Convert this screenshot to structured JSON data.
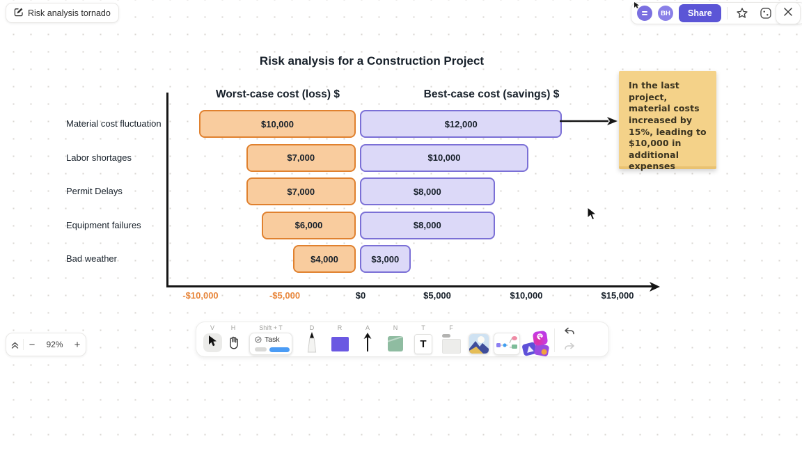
{
  "header": {
    "doc_title": "Risk analysis tornado",
    "avatar_initials": "BH",
    "share_label": "Share"
  },
  "chart_data": {
    "type": "bar",
    "variant": "tornado",
    "title": "Risk analysis for a Construction Project",
    "categories": [
      "Material cost fluctuation",
      "Labor shortages",
      "Permit Delays",
      "Equipment failures",
      "Bad weather"
    ],
    "series": [
      {
        "name": "Worst-case cost (loss) $",
        "direction": "negative",
        "values": [
          10000,
          7000,
          7000,
          6000,
          4000
        ],
        "labels": [
          "$10,000",
          "$7,000",
          "$7,000",
          "$6,000",
          "$4,000"
        ]
      },
      {
        "name": "Best-case cost (savings) $",
        "direction": "positive",
        "values": [
          12000,
          10000,
          8000,
          8000,
          3000
        ],
        "labels": [
          "$12,000",
          "$10,000",
          "$8,000",
          "$8,000",
          "$3,000"
        ]
      }
    ],
    "x_ticks": [
      "-$10,000",
      "-$5,000",
      "$0",
      "$5,000",
      "$10,000",
      "$15,000"
    ],
    "xlim": [
      -10000,
      15000
    ],
    "grid": false,
    "colors": {
      "loss_fill": "#f9cc9e",
      "loss_border": "#e0812f",
      "gain_fill": "#dcd9f8",
      "gain_border": "#7b70d6",
      "negative_tick": "#e8863b",
      "axis": "#151515"
    }
  },
  "annotation": {
    "text": "In the last project, material costs increased by 15%, leading to $10,000 in additional expenses",
    "bg": "#f4d289"
  },
  "toolbar": {
    "tools": [
      {
        "name": "select",
        "shortcut": "V"
      },
      {
        "name": "hand",
        "shortcut": "H"
      },
      {
        "name": "task",
        "shortcut": "Shift + T",
        "label": "Task"
      },
      {
        "name": "draw",
        "shortcut": "D"
      },
      {
        "name": "rectangle",
        "shortcut": "R"
      },
      {
        "name": "arrow",
        "shortcut": "A"
      },
      {
        "name": "note",
        "shortcut": "N"
      },
      {
        "name": "text",
        "shortcut": "T"
      },
      {
        "name": "frame",
        "shortcut": "F"
      },
      {
        "name": "image",
        "shortcut": ""
      },
      {
        "name": "diagram",
        "shortcut": ""
      },
      {
        "name": "stickers",
        "shortcut": ""
      }
    ]
  },
  "zoombar": {
    "zoom_level": "92%",
    "zoom_out": "−",
    "zoom_in": "+"
  },
  "accent": "#5b55d6"
}
